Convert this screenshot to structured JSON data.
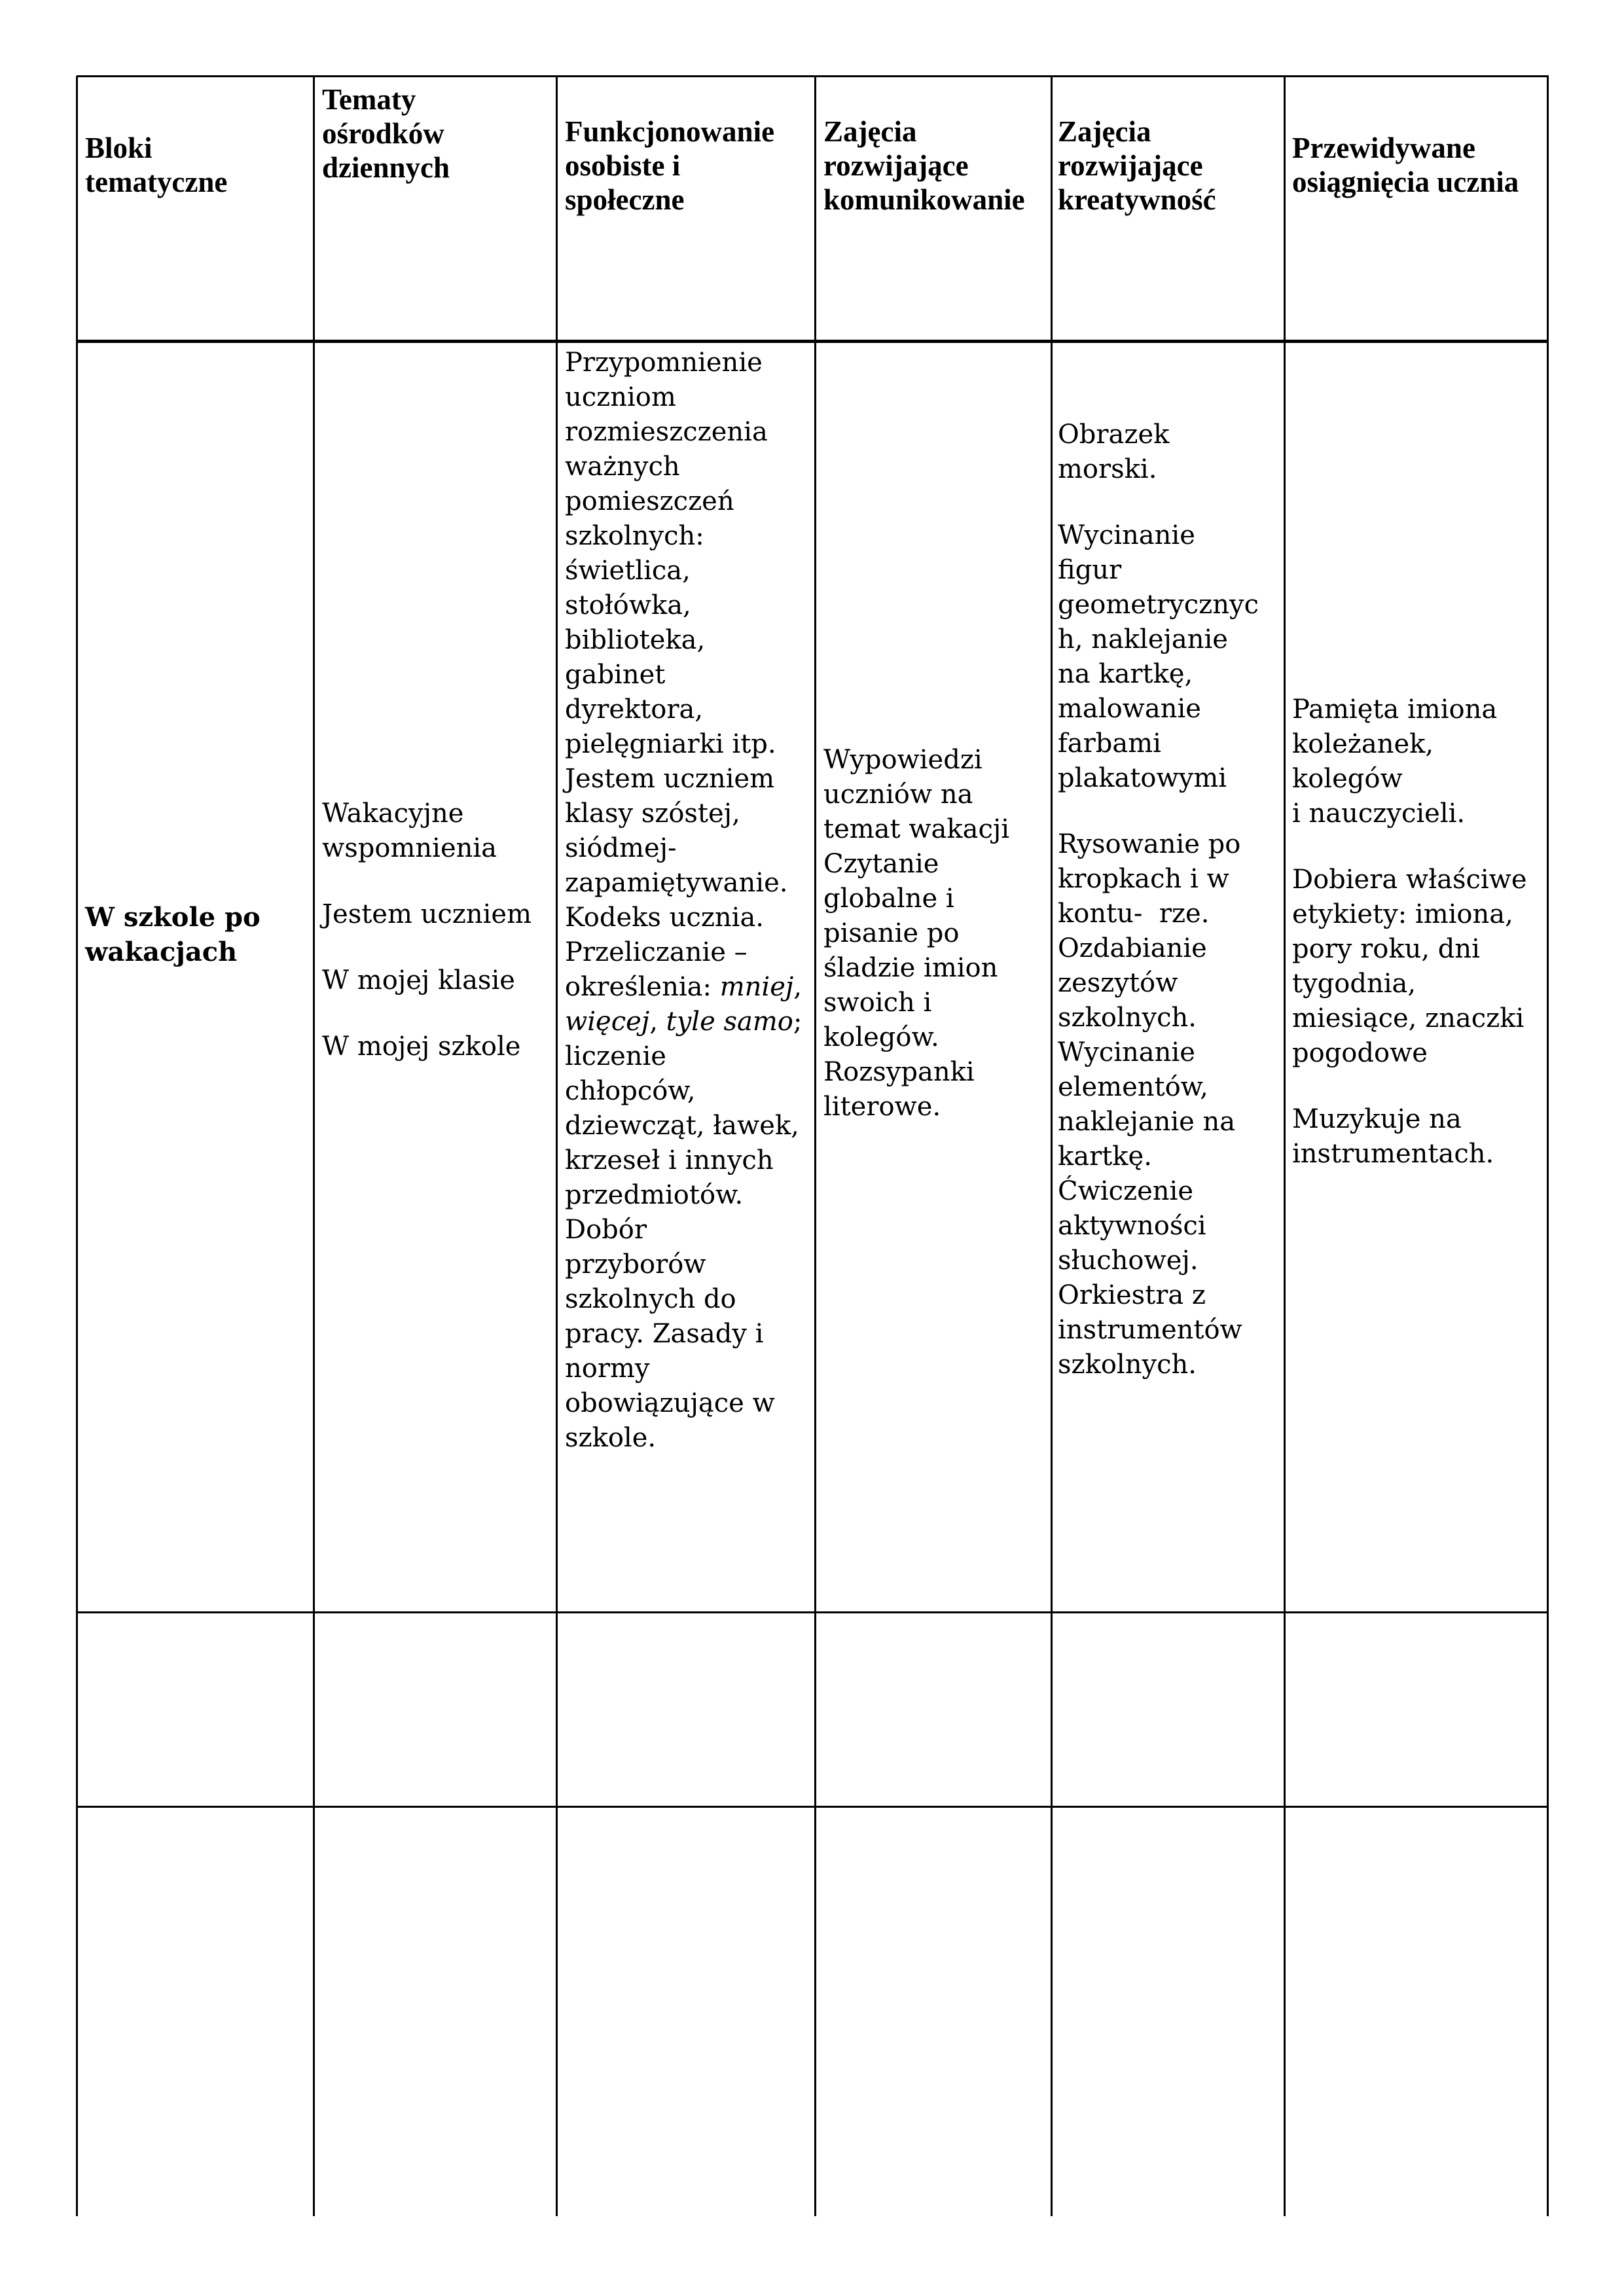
{
  "table": {
    "headers": [
      [
        "Bloki",
        "tematyczne"
      ],
      [
        "Tematy",
        "ośrodków",
        "dziennych"
      ],
      [
        "Funkcjonowanie",
        "osobiste i",
        "społeczne"
      ],
      [
        "Zajęcia",
        "rozwijające",
        "komunikowanie"
      ],
      [
        "Zajęcia",
        "rozwijające",
        "kreatywność"
      ],
      [
        "Przewidywane",
        "osiągnięcia ucznia"
      ]
    ],
    "row1": {
      "block": [
        [
          "W szkole po",
          "wakacjach"
        ]
      ],
      "topics": [
        [
          "Wakacyjne",
          "wspomnienia"
        ],
        [
          "Jestem uczniem"
        ],
        [
          "W mojej klasie"
        ],
        [
          "W mojej szkole"
        ]
      ],
      "personal_social": [
        [
          "Przypomnienie",
          "uczniom",
          "rozmieszczenia",
          "ważnych",
          "pomieszczeń",
          "szkolnych:",
          "świetlica,",
          "stołówka,",
          "biblioteka,",
          "gabinet",
          "dyrektora,",
          "pielęgniarki itp.",
          "Jestem uczniem",
          "klasy szóstej,",
          "siódmej-",
          "zapamiętywanie.",
          "Kodeks ucznia.",
          "Przeliczanie –",
          [
            {
              "t": "określenia: "
            },
            {
              "t": "mniej",
              "i": true
            },
            {
              "t": ","
            }
          ],
          [
            {
              "t": "więcej",
              "i": true
            },
            {
              "t": ", "
            },
            {
              "t": "tyle samo",
              "i": true
            },
            {
              "t": ";"
            }
          ],
          "liczenie",
          "chłopców,",
          "dziewcząt, ławek,",
          "krzeseł i innych",
          "przedmiotów.",
          "Dobór",
          "przyborów",
          "szkolnych do",
          "pracy. Zasady i",
          "normy",
          "obowiązujące w",
          "szkole."
        ]
      ],
      "communication": [
        [
          "Wypowiedzi",
          "uczniów na",
          "temat wakacji",
          "Czytanie",
          "globalne i",
          "pisanie po",
          "śladzie imion",
          "swoich i",
          "kolegów.",
          "Rozsypanki",
          "literowe."
        ]
      ],
      "creativity": [
        [
          "Obrazek",
          "morski."
        ],
        [
          "Wycinanie",
          "figur",
          "geometrycznyc",
          "h, naklejanie",
          "na kartkę,",
          "malowanie",
          "farbami",
          "plakatowymi"
        ],
        [
          "Rysowanie po",
          "kropkach i w",
          "kontu-  rze.",
          "Ozdabianie",
          "zeszytów",
          "szkolnych.",
          "Wycinanie",
          "elementów,",
          "naklejanie na",
          "kartkę.",
          "Ćwiczenie",
          "aktywności",
          "słuchowej.",
          "Orkiestra z",
          "instrumentów",
          "szkolnych."
        ]
      ],
      "achievements": [
        [
          "Pamięta imiona",
          "koleżanek,",
          "kolegów",
          "i nauczycieli."
        ],
        [
          "Dobiera właściwe",
          "etykiety: imiona,",
          "pory roku, dni",
          "tygodnia,",
          "miesiące, znaczki",
          "pogodowe"
        ],
        [
          "Muzykuje na",
          "instrumentach."
        ]
      ]
    }
  }
}
